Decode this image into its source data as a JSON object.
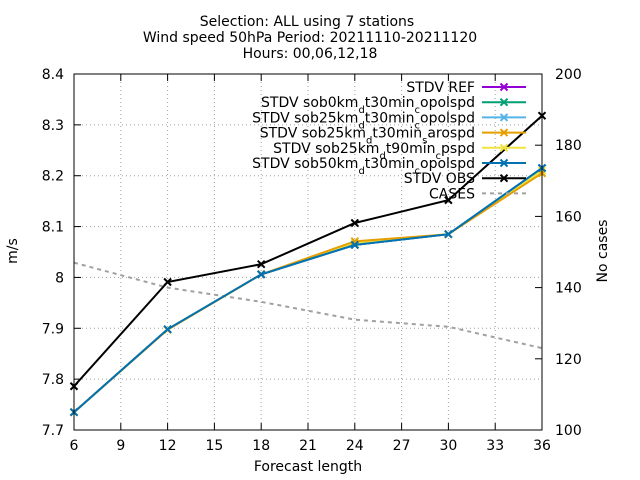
{
  "chart_data": {
    "type": "line",
    "title_lines": [
      "Selection: ALL using      7 stations",
      "Wind speed 50hPa   Period: 20211110-20211120",
      "Hours: 00,06,12,18"
    ],
    "xlabel": "Forecast length",
    "ylabel": "m/s",
    "y2label": "No cases",
    "x": [
      6,
      12,
      18,
      24,
      30,
      36
    ],
    "xlim": [
      6,
      36
    ],
    "xticks": [
      6,
      9,
      12,
      15,
      18,
      21,
      24,
      27,
      30,
      33,
      36
    ],
    "ylim": [
      7.7,
      8.4
    ],
    "yticks": [
      7.7,
      7.8,
      7.9,
      8.0,
      8.1,
      8.2,
      8.3,
      8.4
    ],
    "ytick_labels": [
      "7.7",
      "7.8",
      "7.9",
      "8",
      "8.1",
      "8.2",
      "8.3",
      "8.4"
    ],
    "y2lim": [
      100,
      200
    ],
    "y2ticks": [
      100,
      120,
      140,
      160,
      180,
      200
    ],
    "grid": true,
    "legend_position": "top-right",
    "series": [
      {
        "name": "STDV REF",
        "color": "#9400d3",
        "axis": "y",
        "marker": "x",
        "dashed": false,
        "values": [
          7.735,
          7.898,
          8.006,
          8.064,
          8.085,
          8.215
        ]
      },
      {
        "name": "STDV sob0km_dt30min_copolspd",
        "color": "#009e73",
        "axis": "y",
        "marker": "x",
        "dashed": false,
        "values": [
          7.735,
          7.898,
          8.006,
          8.064,
          8.085,
          8.215
        ]
      },
      {
        "name": "STDV sob25km_dt30min_copolspd",
        "color": "#56b4e9",
        "axis": "y",
        "marker": "x",
        "dashed": false,
        "values": [
          7.735,
          7.898,
          8.006,
          8.064,
          8.085,
          8.215
        ]
      },
      {
        "name": "STDV sob25km_dt30min_sarospd",
        "color": "#e69f00",
        "axis": "y",
        "marker": "x",
        "dashed": false,
        "values": [
          7.735,
          7.897,
          8.006,
          8.071,
          8.085,
          8.205
        ]
      },
      {
        "name": "STDV sob25km_dt90min_cpspd",
        "color": "#f0e442",
        "axis": "y",
        "marker": "x",
        "dashed": false,
        "values": [
          7.735,
          7.898,
          8.006,
          8.067,
          8.085,
          8.21
        ]
      },
      {
        "name": "STDV sob50km_dt30min_copolspd",
        "color": "#0072b2",
        "axis": "y",
        "marker": "x",
        "dashed": false,
        "values": [
          7.735,
          7.898,
          8.006,
          8.064,
          8.085,
          8.215
        ]
      },
      {
        "name": "STDV OBS",
        "color": "#000000",
        "axis": "y",
        "marker": "x",
        "dashed": false,
        "values": [
          7.786,
          7.991,
          8.026,
          8.107,
          8.152,
          8.318
        ]
      },
      {
        "name": "CASES",
        "color": "#a0a0a0",
        "axis": "y2",
        "marker": "none",
        "dashed": true,
        "values": [
          147,
          140,
          136,
          131,
          129,
          123
        ]
      }
    ]
  },
  "legend_items": [
    {
      "base": "STDV REF",
      "parts": []
    },
    {
      "base": "STDV sob0km",
      "parts": [
        [
          "sub",
          "d"
        ],
        [
          "",
          "t30min"
        ],
        [
          "sub",
          "c"
        ],
        [
          "",
          "opolspd"
        ]
      ]
    },
    {
      "base": "STDV sob25km",
      "parts": [
        [
          "sub",
          "d"
        ],
        [
          "",
          "t30min"
        ],
        [
          "sub",
          "c"
        ],
        [
          "",
          "opolspd"
        ]
      ]
    },
    {
      "base": "STDV sob25km",
      "parts": [
        [
          "sub",
          "d"
        ],
        [
          "",
          "t30min"
        ],
        [
          "sub",
          "s"
        ],
        [
          "",
          "arospd"
        ]
      ]
    },
    {
      "base": "STDV sob25km",
      "parts": [
        [
          "sub",
          "d"
        ],
        [
          "",
          "t90min"
        ],
        [
          "sub",
          "c"
        ],
        [
          "",
          "pspd"
        ]
      ]
    },
    {
      "base": "STDV sob50km",
      "parts": [
        [
          "sub",
          "d"
        ],
        [
          "",
          "t30min"
        ],
        [
          "sub",
          "c"
        ],
        [
          "",
          "opolspd"
        ]
      ]
    },
    {
      "base": "STDV OBS",
      "parts": []
    },
    {
      "base": "CASES",
      "parts": []
    }
  ]
}
